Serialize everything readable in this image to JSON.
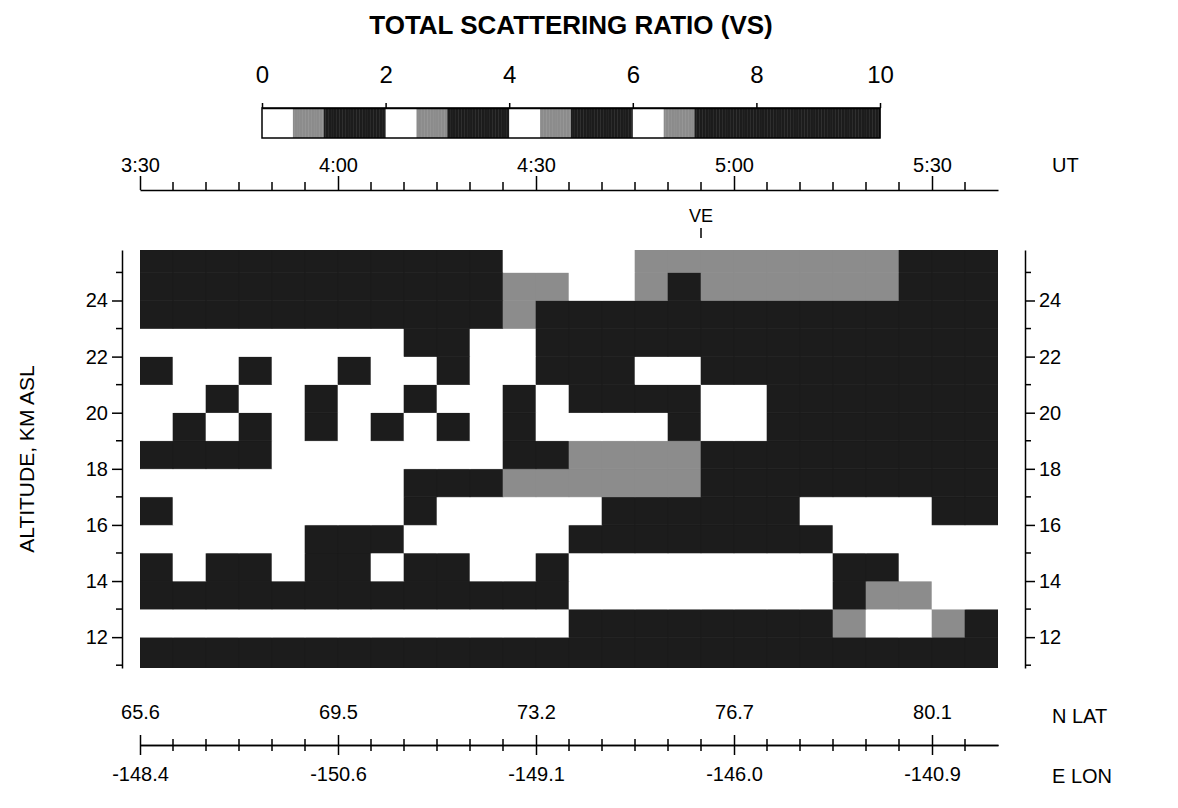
{
  "chart_data": {
    "type": "heatmap",
    "title": "TOTAL SCATTERING RATIO (VS)",
    "xlabel": "UT",
    "ylabel": "ALTITUDE, KM ASL",
    "xlim": [
      210,
      340
    ],
    "xticks": [
      {
        "value": 210,
        "label": "3:30"
      },
      {
        "value": 240,
        "label": "4:00"
      },
      {
        "value": 270,
        "label": "4:30"
      },
      {
        "value": 300,
        "label": "5:00"
      },
      {
        "value": 330,
        "label": "5:30"
      }
    ],
    "minor_xticks": [
      215,
      220,
      225,
      230,
      235,
      245,
      250,
      255,
      260,
      265,
      275,
      280,
      285,
      290,
      295,
      305,
      310,
      315,
      320,
      325,
      335
    ],
    "ylim": [
      10.9,
      25.8
    ],
    "yticks": [
      12,
      14,
      16,
      18,
      20,
      22,
      24
    ],
    "minor_yticks": [
      11,
      13,
      15,
      17,
      19,
      21,
      23,
      25
    ],
    "lat_label": "N LAT",
    "lat_ticks": [
      {
        "value": 210,
        "label": "65.6"
      },
      {
        "value": 240,
        "label": "69.5"
      },
      {
        "value": 270,
        "label": "73.2"
      },
      {
        "value": 300,
        "label": "76.7"
      },
      {
        "value": 330,
        "label": "80.1"
      }
    ],
    "lon_label": "E LON",
    "lon_ticks": [
      {
        "value": 210,
        "label": "-148.4"
      },
      {
        "value": 240,
        "label": "-150.6"
      },
      {
        "value": 270,
        "label": "-149.1"
      },
      {
        "value": 300,
        "label": "-146.0"
      },
      {
        "value": 330,
        "label": "-140.9"
      }
    ],
    "annotations": [
      {
        "text": "VE",
        "x": 295
      }
    ],
    "colorbar": {
      "range": [
        0,
        10
      ],
      "ticks": [
        0,
        2,
        4,
        6,
        8,
        10
      ]
    },
    "cells": {
      "x_edges": [
        210,
        215,
        220,
        225,
        230,
        235,
        240,
        245,
        250,
        255,
        260,
        265,
        270,
        275,
        280,
        285,
        290,
        295,
        300,
        305,
        310,
        315,
        320,
        325,
        330,
        335,
        340
      ],
      "y_edges": [
        10.9,
        12,
        13,
        14,
        15,
        16,
        17,
        18,
        19,
        20,
        21,
        22,
        23,
        24,
        25,
        25.8
      ],
      "values": [
        [
          1.2,
          1.2,
          1.2,
          1.2,
          1.2,
          1.2,
          1.2,
          1.2,
          1.2,
          1.2,
          1.2,
          1.2,
          1.2,
          1.2,
          1.2,
          1.2,
          1.2,
          1.2,
          1.2,
          1.2,
          1.2,
          1.2,
          1.2,
          1.2,
          1.2,
          1.2
        ],
        [
          2.2,
          2.2,
          2.2,
          2.2,
          2.2,
          2.2,
          2.2,
          2.2,
          2.2,
          2.2,
          2.2,
          2.2,
          2.2,
          1.2,
          1.2,
          1.2,
          1.2,
          1.2,
          1.2,
          1.2,
          1.2,
          0.6,
          2.2,
          2.2,
          0.6,
          1.2
        ],
        [
          1.2,
          1.2,
          1.2,
          1.2,
          1.2,
          1.2,
          1.2,
          1.2,
          1.2,
          1.2,
          1.2,
          1.2,
          1.2,
          2.2,
          2.2,
          2.2,
          2.2,
          2.2,
          2.2,
          2.2,
          2.2,
          1.2,
          0.6,
          0.6,
          2.2,
          2.2
        ],
        [
          1.2,
          2.2,
          1.2,
          1.2,
          2.2,
          1.2,
          1.2,
          2.2,
          1.2,
          1.2,
          2.2,
          2.2,
          1.2,
          2.2,
          2.2,
          2.2,
          2.2,
          2.2,
          2.2,
          2.2,
          2.2,
          1.2,
          1.2,
          2.2,
          2.2,
          2.2
        ],
        [
          2.2,
          2.2,
          2.2,
          2.2,
          2.2,
          1.2,
          1.2,
          1.2,
          2.2,
          2.2,
          2.2,
          2.2,
          2.2,
          1.2,
          1.2,
          1.2,
          1.2,
          1.2,
          1.2,
          1.2,
          1.2,
          2.2,
          2.2,
          2.2,
          2.2,
          2.2
        ],
        [
          1.2,
          2.2,
          2.2,
          2.2,
          2.2,
          2.2,
          2.2,
          2.2,
          1.2,
          2.2,
          2.2,
          2.2,
          2.2,
          2.2,
          1.2,
          1.2,
          1.2,
          1.2,
          1.2,
          1.2,
          2.2,
          2.2,
          2.2,
          2.2,
          1.2,
          1.2
        ],
        [
          2.2,
          2.2,
          2.2,
          2.2,
          2.2,
          2.2,
          2.2,
          2.2,
          1.2,
          1.2,
          1.2,
          0.6,
          0.6,
          0.6,
          0.6,
          0.6,
          0.6,
          1.2,
          1.2,
          1.2,
          1.2,
          1.2,
          1.2,
          1.2,
          1.2,
          1.2
        ],
        [
          1.2,
          1.2,
          1.2,
          1.2,
          2.2,
          2.2,
          2.2,
          2.2,
          2.2,
          2.2,
          2.2,
          1.2,
          1.2,
          0.6,
          0.6,
          0.6,
          0.6,
          1.2,
          1.2,
          1.2,
          1.2,
          1.2,
          1.2,
          1.2,
          1.2,
          1.2
        ],
        [
          2.2,
          1.2,
          2.2,
          1.2,
          2.2,
          1.2,
          2.2,
          1.2,
          2.2,
          1.2,
          2.2,
          1.2,
          2.2,
          2.2,
          2.2,
          2.2,
          1.2,
          2.2,
          2.2,
          1.2,
          1.2,
          1.2,
          1.2,
          1.2,
          1.2,
          1.2
        ],
        [
          2.2,
          2.2,
          1.2,
          2.2,
          2.2,
          1.2,
          2.2,
          2.2,
          1.2,
          2.2,
          2.2,
          1.2,
          2.2,
          1.2,
          1.2,
          1.2,
          1.2,
          2.2,
          2.2,
          1.2,
          1.2,
          1.2,
          1.2,
          1.2,
          1.2,
          1.2
        ],
        [
          1.2,
          2.2,
          2.2,
          1.2,
          2.2,
          2.2,
          1.2,
          2.2,
          2.2,
          1.2,
          2.2,
          2.2,
          1.2,
          1.2,
          1.2,
          2.2,
          2.2,
          1.2,
          1.2,
          1.2,
          1.2,
          1.2,
          1.2,
          1.2,
          1.2,
          1.2
        ],
        [
          2.2,
          2.2,
          2.2,
          2.2,
          2.2,
          2.2,
          2.2,
          2.2,
          1.2,
          1.2,
          2.2,
          2.2,
          1.2,
          1.2,
          1.2,
          1.2,
          1.2,
          1.2,
          1.2,
          1.2,
          1.2,
          1.2,
          1.2,
          1.2,
          1.2,
          1.2
        ],
        [
          1.2,
          1.2,
          1.2,
          1.2,
          1.2,
          1.2,
          1.2,
          1.2,
          1.2,
          1.2,
          1.2,
          0.6,
          1.2,
          1.2,
          1.2,
          1.2,
          1.2,
          1.2,
          1.2,
          1.2,
          1.2,
          1.2,
          1.2,
          1.2,
          1.2,
          1.2
        ],
        [
          1.2,
          1.2,
          1.2,
          1.2,
          1.2,
          1.2,
          1.2,
          1.2,
          1.2,
          1.2,
          1.2,
          0.6,
          0.6,
          2.2,
          2.2,
          0.6,
          1.2,
          0.6,
          0.6,
          0.6,
          0.6,
          0.6,
          0.6,
          1.2,
          1.2,
          1.2
        ],
        [
          1.2,
          1.2,
          1.2,
          1.2,
          1.2,
          1.2,
          1.2,
          1.2,
          1.2,
          1.2,
          1.2,
          2.2,
          2.2,
          2.2,
          2.2,
          0.6,
          0.6,
          0.6,
          0.6,
          0.6,
          0.6,
          0.6,
          0.6,
          1.2,
          1.2,
          1.2
        ]
      ]
    }
  }
}
